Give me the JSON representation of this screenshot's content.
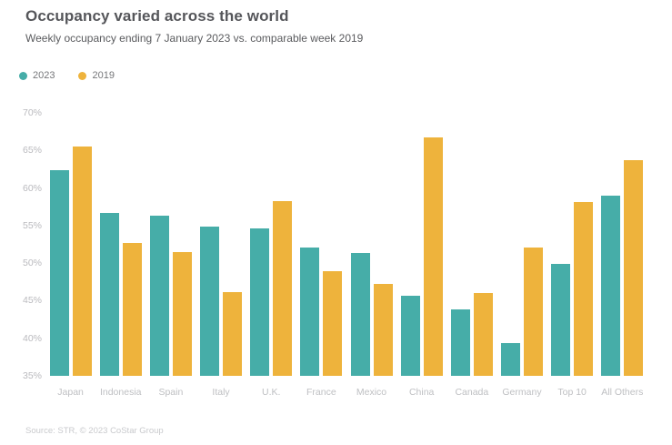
{
  "header": {
    "title": "Occupancy varied across the world",
    "subtitle": "Weekly occupancy ending 7 January 2023 vs. comparable week 2019"
  },
  "legend": [
    {
      "label": "2023",
      "color": "#46ADA8"
    },
    {
      "label": "2019",
      "color": "#EEB33C"
    }
  ],
  "footer": {
    "source": "Source: STR, © 2023 CoStar Group"
  },
  "colors": {
    "series_2023": "#46ADA8",
    "series_2019": "#EEB33C",
    "title_text": "#55565A",
    "axis_tick_text": "#BABABE",
    "source_text": "#C9CACD",
    "background": "#FFFFFF"
  },
  "chart_data": {
    "type": "bar",
    "title": "Occupancy varied across the world",
    "subtitle": "Weekly occupancy ending 7 January 2023 vs. comparable week 2019",
    "categories": [
      "Japan",
      "Indonesia",
      "Spain",
      "Italy",
      "U.K.",
      "France",
      "Mexico",
      "China",
      "Canada",
      "Germany",
      "Top 10",
      "All Others"
    ],
    "series": [
      {
        "name": "2023",
        "color": "#46ADA8",
        "values": [
          62.4,
          56.7,
          56.3,
          54.9,
          54.6,
          52.1,
          51.4,
          45.6,
          43.8,
          39.4,
          49.9,
          59.0
        ]
      },
      {
        "name": "2019",
        "color": "#EEB33C",
        "values": [
          65.5,
          52.7,
          51.5,
          46.2,
          58.3,
          48.9,
          47.2,
          66.7,
          46.0,
          52.1,
          58.1,
          63.7
        ]
      }
    ],
    "xlabel": "",
    "ylabel": "",
    "ylim": [
      35,
      70
    ],
    "y_ticks": [
      70,
      65,
      60,
      55,
      50,
      45,
      40,
      35
    ],
    "y_tick_suffix": "%",
    "grid": "off",
    "legend_position": "top-left"
  }
}
